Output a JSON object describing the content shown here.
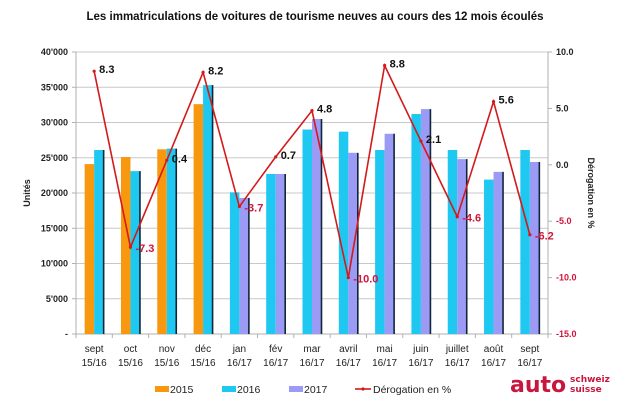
{
  "chart_data": {
    "type": "bar",
    "title": "Les immatriculations de voitures de tourisme neuves au cours des 12 mois écoulés",
    "xlabel": "",
    "ylabel": "Unités",
    "y2label": "Dérogation en %",
    "ylim": [
      0,
      40000
    ],
    "y2lim": [
      -15,
      10
    ],
    "yticks": [
      "-",
      "5'000",
      "10'000",
      "15'000",
      "20'000",
      "25'000",
      "30'000",
      "35'000",
      "40'000"
    ],
    "ytick_values": [
      0,
      5000,
      10000,
      15000,
      20000,
      25000,
      30000,
      35000,
      40000
    ],
    "y2ticks": [
      "-15.0",
      "-10.0",
      "-5.0",
      "0.0",
      "5.0",
      "10.0"
    ],
    "y2tick_values": [
      -15,
      -10,
      -5,
      0,
      5,
      10
    ],
    "grid": true,
    "legend_position": "bottom",
    "categories": [
      [
        "sept",
        "15/16"
      ],
      [
        "oct",
        "15/16"
      ],
      [
        "nov",
        "15/16"
      ],
      [
        "déc",
        "15/16"
      ],
      [
        "jan",
        "16/17"
      ],
      [
        "fév",
        "16/17"
      ],
      [
        "mar",
        "16/17"
      ],
      [
        "avril",
        "16/17"
      ],
      [
        "mai",
        "16/17"
      ],
      [
        "juin",
        "16/17"
      ],
      [
        "juillet",
        "16/17"
      ],
      [
        "août",
        "16/17"
      ],
      [
        "sept",
        "16/17"
      ]
    ],
    "series": [
      {
        "name": "2015",
        "kind": "bar",
        "color": "#f7980f",
        "values": [
          24100,
          25100,
          26200,
          32600,
          null,
          null,
          null,
          null,
          null,
          null,
          null,
          null,
          null
        ]
      },
      {
        "name": "2016",
        "kind": "bar",
        "color": "#1ec8f0",
        "values": [
          26100,
          23100,
          26300,
          35300,
          20100,
          22700,
          29000,
          28700,
          26100,
          31200,
          26100,
          21900,
          26100
        ]
      },
      {
        "name": "2017",
        "kind": "bar",
        "color": "#9b9bf5",
        "values": [
          null,
          null,
          null,
          null,
          19300,
          22700,
          30500,
          25700,
          28400,
          31900,
          24800,
          23000,
          24400
        ]
      },
      {
        "name": "Dérogation en %",
        "kind": "line",
        "axis": "right",
        "color": "#d41a1a",
        "values": [
          8.3,
          -7.3,
          0.4,
          8.2,
          -3.7,
          0.7,
          4.8,
          -10.0,
          8.8,
          2.1,
          -4.6,
          5.6,
          -6.2
        ],
        "labels": [
          "8.3",
          "-7.3",
          "0.4",
          "8.2",
          "-3.7",
          "0.7",
          "4.8",
          "-10.0",
          "8.8",
          "2.1",
          "-4.6",
          "5.6",
          "-6.2"
        ]
      }
    ]
  },
  "logo": {
    "main": "auto",
    "line1": "schweiz",
    "line2": "suisse"
  }
}
